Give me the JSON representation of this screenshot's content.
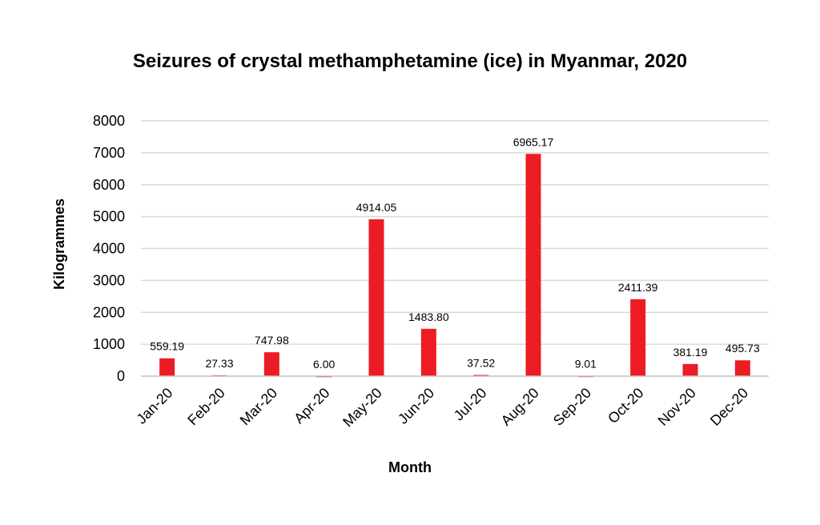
{
  "chart_data": {
    "type": "bar",
    "title": "Seizures of crystal methamphetamine (ice) in Myanmar, 2020",
    "xlabel": "Month",
    "ylabel": "Kilogrammes",
    "categories": [
      "Jan-20",
      "Feb-20",
      "Mar-20",
      "Apr-20",
      "May-20",
      "Jun-20",
      "Jul-20",
      "Aug-20",
      "Sep-20",
      "Oct-20",
      "Nov-20",
      "Dec-20"
    ],
    "values": [
      559.19,
      27.33,
      747.98,
      6.0,
      4914.05,
      1483.8,
      37.52,
      6965.17,
      9.01,
      2411.39,
      381.19,
      495.73
    ],
    "value_labels": [
      "559.19",
      "27.33",
      "747.98",
      "6.00",
      "4914.05",
      "1483.80",
      "37.52",
      "6965.17",
      "9.01",
      "2411.39",
      "381.19",
      "495.73"
    ],
    "ylim": [
      0,
      8000
    ],
    "yticks": [
      "0",
      "1000",
      "2000",
      "3000",
      "4000",
      "5000",
      "6000",
      "7000",
      "8000"
    ],
    "grid": true,
    "bar_color": "#ed1c24"
  }
}
